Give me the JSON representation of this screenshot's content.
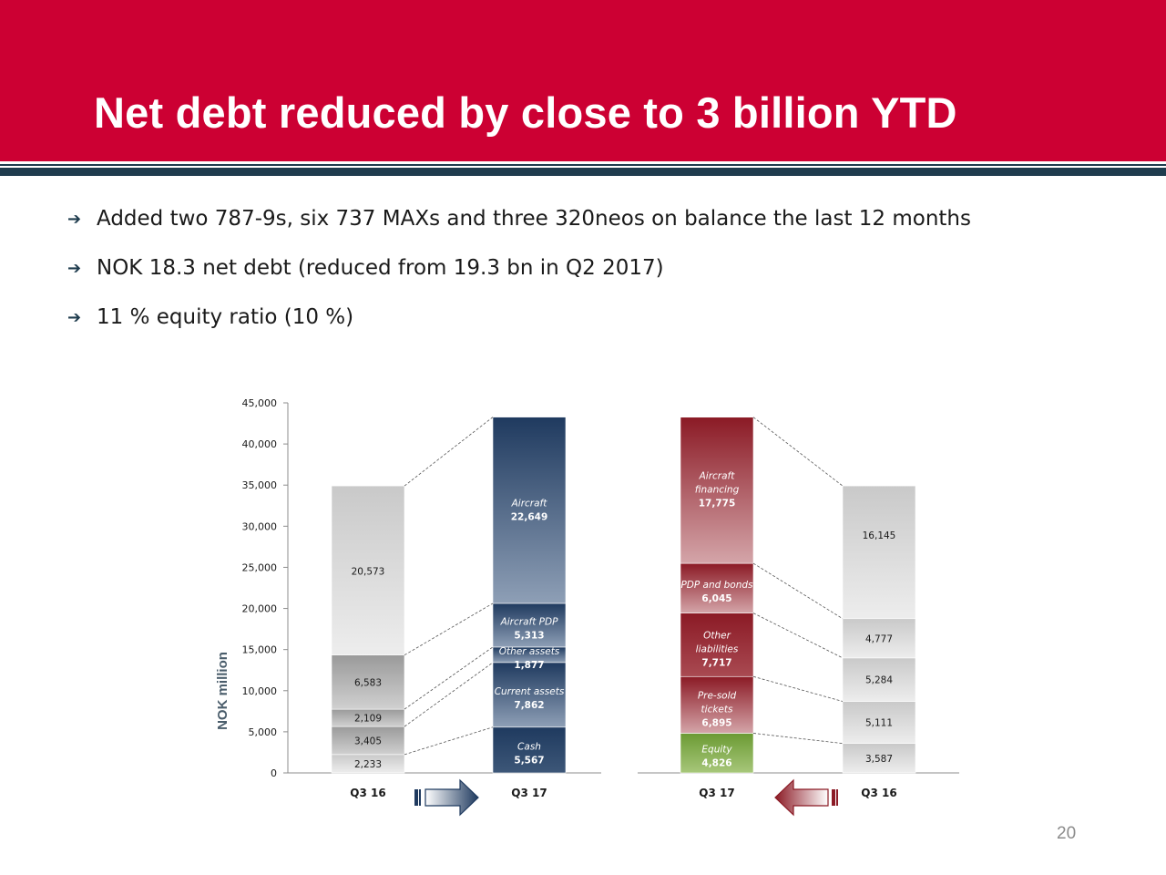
{
  "slide": {
    "title": "Net debt reduced by close to 3 billion YTD",
    "bullets": [
      "Added two 787-9s, six 737 MAXs and three 320neos on balance the last 12 months",
      "NOK 18.3 net debt (reduced from 19.3 bn in Q2 2017)",
      "11 % equity ratio (10 %)"
    ],
    "page_number": "20"
  },
  "colors": {
    "header": "#cc0033",
    "stripe": "#1f3c4e",
    "assets_dark": "#1f3a5f",
    "liabilities_dark": "#8b1a25",
    "equity": "#7aa63c",
    "q316_fill": "#d2d2d2"
  },
  "chart_data": {
    "type": "bar",
    "stacked": true,
    "ylabel": "NOK million",
    "ylim": [
      0,
      45000
    ],
    "yticks": [
      0,
      5000,
      10000,
      15000,
      20000,
      25000,
      30000,
      35000,
      40000,
      45000
    ],
    "ytick_labels": [
      "0",
      "5,000",
      "10,000",
      "15,000",
      "20,000",
      "25,000",
      "30,000",
      "35,000",
      "40,000",
      "45,000"
    ],
    "categories": [
      "Q3 16",
      "Q3 17",
      "Q3 17",
      "Q3 16"
    ],
    "stacks": [
      {
        "category": "Q3 16",
        "side": "assets",
        "segments": [
          {
            "name": "",
            "value": 2233,
            "label": "2,233"
          },
          {
            "name": "",
            "value": 3405,
            "label": "3,405"
          },
          {
            "name": "",
            "value": 2109,
            "label": "2,109"
          },
          {
            "name": "",
            "value": 6583,
            "label": "6,583"
          },
          {
            "name": "",
            "value": 20573,
            "label": "20,573"
          }
        ]
      },
      {
        "category": "Q3 17",
        "side": "assets",
        "segments": [
          {
            "name": "Cash",
            "value": 5567,
            "label": "5,567"
          },
          {
            "name": "Current assets",
            "value": 7862,
            "label": "7,862"
          },
          {
            "name": "Other assets",
            "value": 1877,
            "label": "1,877"
          },
          {
            "name": "Aircraft PDP",
            "value": 5313,
            "label": "5,313"
          },
          {
            "name": "Aircraft",
            "value": 22649,
            "label": "22,649"
          }
        ]
      },
      {
        "category": "Q3 17",
        "side": "liabilities",
        "segments": [
          {
            "name": "Equity",
            "value": 4826,
            "label": "4,826"
          },
          {
            "name": "Pre-sold tickets",
            "value": 6895,
            "label": "6,895"
          },
          {
            "name": "Other liabilities",
            "value": 7717,
            "label": "7,717"
          },
          {
            "name": "PDP and bonds",
            "value": 6045,
            "label": "6,045"
          },
          {
            "name": "Aircraft financing",
            "value": 17775,
            "label": "17,775"
          }
        ]
      },
      {
        "category": "Q3 16",
        "side": "liabilities",
        "segments": [
          {
            "name": "",
            "value": 3587,
            "label": "3,587"
          },
          {
            "name": "",
            "value": 5111,
            "label": "5,111"
          },
          {
            "name": "",
            "value": 5284,
            "label": "5,284"
          },
          {
            "name": "",
            "value": 4777,
            "label": "4,777"
          },
          {
            "name": "",
            "value": 16145,
            "label": "16,145"
          }
        ]
      }
    ],
    "arrows": [
      {
        "from": "Q3 16",
        "to": "Q3 17",
        "direction": "right",
        "color": "#1f3a5f"
      },
      {
        "from": "Q3 17",
        "to": "Q3 16",
        "direction": "left",
        "color": "#8b1a25"
      }
    ]
  }
}
